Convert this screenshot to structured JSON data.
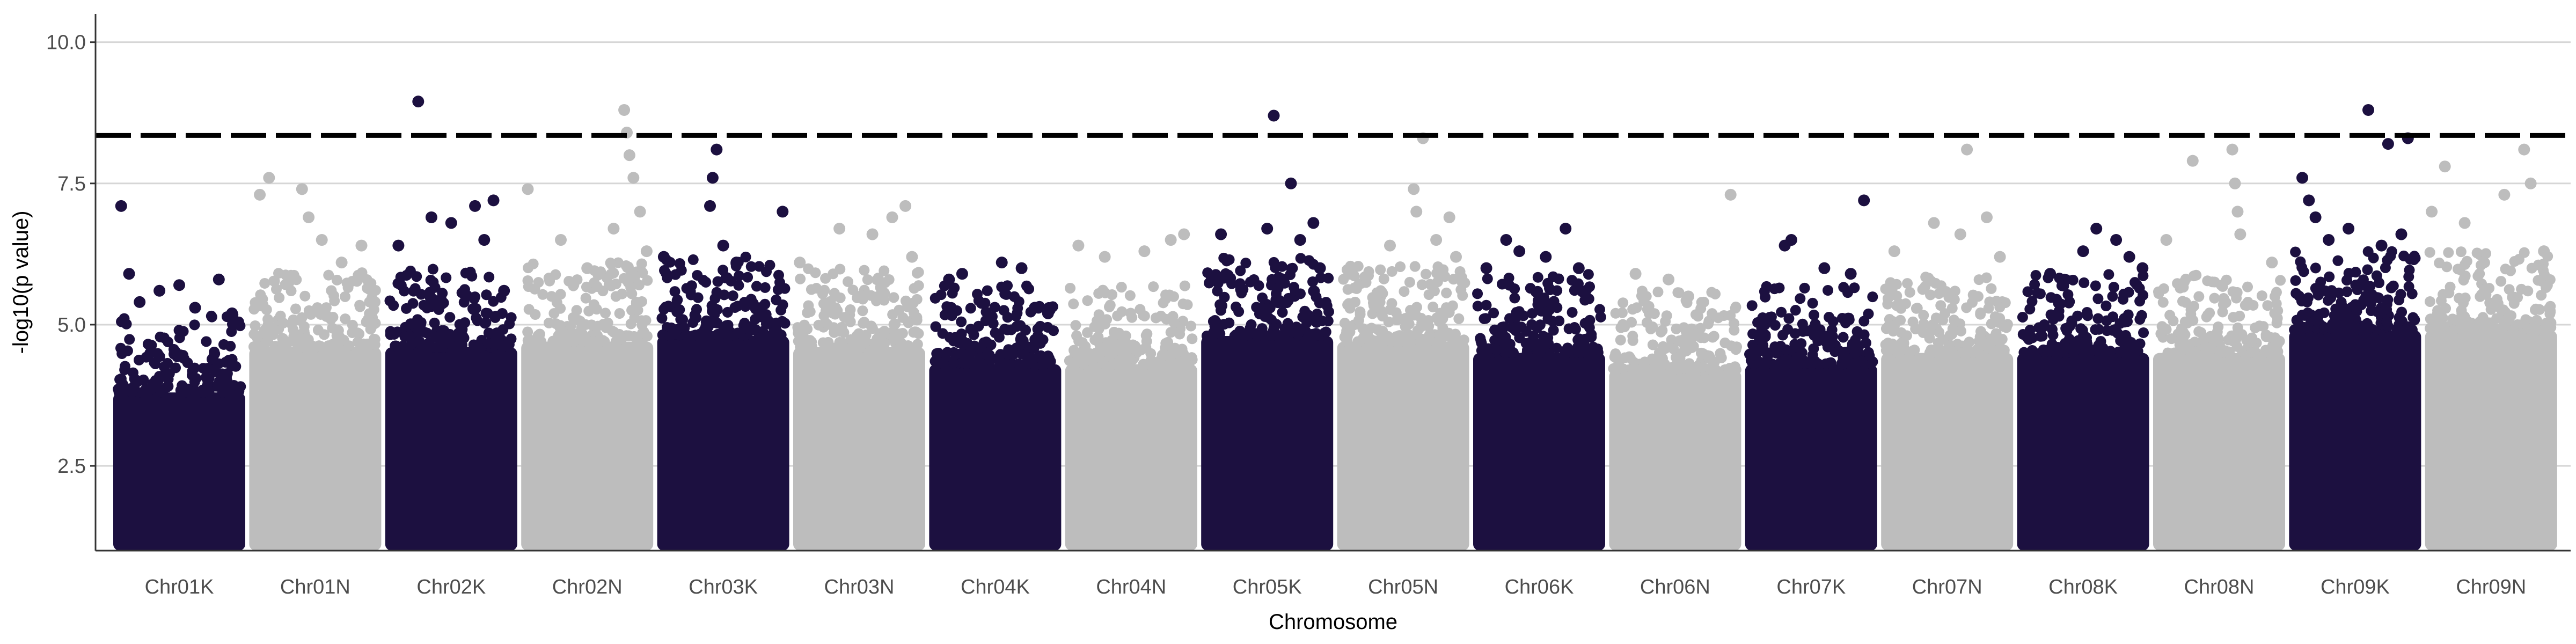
{
  "chart_data": {
    "type": "scatter",
    "subtype": "manhattan",
    "title": "",
    "xlabel": "Chromosome",
    "ylabel": "-log10(p value)",
    "ylim": [
      1,
      10.5
    ],
    "yticks": [
      2.5,
      5.0,
      7.5,
      10.0
    ],
    "ytick_labels": [
      "2.5",
      "5.0",
      "7.5",
      "10.0"
    ],
    "grid": "horizontal major lines only",
    "legend": "none",
    "threshold": {
      "value": 8.35,
      "style": "dashed",
      "color": "#000000"
    },
    "colors": {
      "K": "#1c1040",
      "N": "#bdbdbd"
    },
    "categories": [
      "Chr01K",
      "Chr01N",
      "Chr02K",
      "Chr02N",
      "Chr03K",
      "Chr03N",
      "Chr04K",
      "Chr04N",
      "Chr05K",
      "Chr05N",
      "Chr06K",
      "Chr06N",
      "Chr07K",
      "Chr07N",
      "Chr08K",
      "Chr08N",
      "Chr09K",
      "Chr09N"
    ],
    "series": [
      {
        "chromosome": "Chr01K",
        "dense_top": 3.8,
        "peak": 7.1,
        "points": [
          [
            0.06,
            7.1
          ],
          [
            0.12,
            5.9
          ],
          [
            0.2,
            5.4
          ],
          [
            0.35,
            5.6
          ],
          [
            0.5,
            5.7
          ],
          [
            0.62,
            5.3
          ],
          [
            0.8,
            5.8
          ],
          [
            0.9,
            5.2
          ]
        ]
      },
      {
        "chromosome": "Chr01N",
        "dense_top": 4.6,
        "peak": 7.6,
        "points": [
          [
            0.08,
            7.3
          ],
          [
            0.15,
            7.6
          ],
          [
            0.4,
            7.4
          ],
          [
            0.45,
            6.9
          ],
          [
            0.55,
            6.5
          ],
          [
            0.7,
            6.1
          ],
          [
            0.85,
            6.4
          ],
          [
            0.95,
            5.4
          ]
        ]
      },
      {
        "chromosome": "Chr02K",
        "dense_top": 4.6,
        "peak": 8.95,
        "points": [
          [
            0.1,
            6.4
          ],
          [
            0.25,
            8.95
          ],
          [
            0.35,
            6.9
          ],
          [
            0.5,
            6.8
          ],
          [
            0.68,
            7.1
          ],
          [
            0.75,
            6.5
          ],
          [
            0.82,
            7.2
          ],
          [
            0.9,
            5.6
          ]
        ]
      },
      {
        "chromosome": "Chr02N",
        "dense_top": 4.7,
        "peak": 8.8,
        "points": [
          [
            0.05,
            7.4
          ],
          [
            0.3,
            6.5
          ],
          [
            0.5,
            6.0
          ],
          [
            0.7,
            6.7
          ],
          [
            0.78,
            8.8
          ],
          [
            0.8,
            8.4
          ],
          [
            0.82,
            8.0
          ],
          [
            0.85,
            7.6
          ],
          [
            0.9,
            7.0
          ],
          [
            0.95,
            6.3
          ]
        ]
      },
      {
        "chromosome": "Chr03K",
        "dense_top": 4.8,
        "peak": 8.1,
        "points": [
          [
            0.05,
            6.2
          ],
          [
            0.4,
            7.1
          ],
          [
            0.42,
            7.6
          ],
          [
            0.45,
            8.1
          ],
          [
            0.5,
            6.4
          ],
          [
            0.6,
            6.1
          ],
          [
            0.95,
            7.0
          ]
        ]
      },
      {
        "chromosome": "Chr03N",
        "dense_top": 4.6,
        "peak": 7.1,
        "points": [
          [
            0.05,
            6.1
          ],
          [
            0.35,
            6.7
          ],
          [
            0.6,
            6.6
          ],
          [
            0.75,
            6.9
          ],
          [
            0.85,
            7.1
          ],
          [
            0.9,
            6.2
          ]
        ]
      },
      {
        "chromosome": "Chr04K",
        "dense_top": 4.3,
        "peak": 6.1,
        "points": [
          [
            0.15,
            5.8
          ],
          [
            0.25,
            5.9
          ],
          [
            0.55,
            6.1
          ],
          [
            0.7,
            6.0
          ],
          [
            0.8,
            5.3
          ],
          [
            0.9,
            5.2
          ]
        ]
      },
      {
        "chromosome": "Chr04N",
        "dense_top": 4.3,
        "peak": 6.6,
        "points": [
          [
            0.1,
            6.4
          ],
          [
            0.3,
            6.2
          ],
          [
            0.6,
            6.3
          ],
          [
            0.8,
            6.5
          ],
          [
            0.9,
            6.6
          ]
        ]
      },
      {
        "chromosome": "Chr05K",
        "dense_top": 4.8,
        "peak": 8.7,
        "points": [
          [
            0.15,
            6.6
          ],
          [
            0.5,
            6.7
          ],
          [
            0.55,
            8.7
          ],
          [
            0.68,
            7.5
          ],
          [
            0.75,
            6.5
          ],
          [
            0.85,
            6.8
          ],
          [
            0.9,
            6.0
          ]
        ]
      },
      {
        "chromosome": "Chr05N",
        "dense_top": 4.7,
        "peak": 8.3,
        "points": [
          [
            0.1,
            5.9
          ],
          [
            0.4,
            6.4
          ],
          [
            0.58,
            7.4
          ],
          [
            0.6,
            7.0
          ],
          [
            0.65,
            8.3
          ],
          [
            0.75,
            6.5
          ],
          [
            0.85,
            6.9
          ],
          [
            0.9,
            6.2
          ]
        ]
      },
      {
        "chromosome": "Chr06K",
        "dense_top": 4.5,
        "peak": 6.7,
        "points": [
          [
            0.1,
            6.0
          ],
          [
            0.25,
            6.5
          ],
          [
            0.35,
            6.3
          ],
          [
            0.55,
            6.2
          ],
          [
            0.7,
            6.7
          ],
          [
            0.8,
            6.0
          ]
        ]
      },
      {
        "chromosome": "Chr06N",
        "dense_top": 4.2,
        "peak": 7.3,
        "points": [
          [
            0.2,
            5.9
          ],
          [
            0.45,
            5.8
          ],
          [
            0.6,
            5.5
          ],
          [
            0.92,
            7.3
          ]
        ]
      },
      {
        "chromosome": "Chr07K",
        "dense_top": 4.3,
        "peak": 7.2,
        "points": [
          [
            0.3,
            6.4
          ],
          [
            0.35,
            6.5
          ],
          [
            0.6,
            6.0
          ],
          [
            0.8,
            5.9
          ],
          [
            0.9,
            7.2
          ]
        ]
      },
      {
        "chromosome": "Chr07N",
        "dense_top": 4.5,
        "peak": 8.1,
        "points": [
          [
            0.1,
            6.3
          ],
          [
            0.4,
            6.8
          ],
          [
            0.6,
            6.6
          ],
          [
            0.65,
            8.1
          ],
          [
            0.8,
            6.9
          ],
          [
            0.9,
            6.2
          ]
        ]
      },
      {
        "chromosome": "Chr08K",
        "dense_top": 4.5,
        "peak": 6.7,
        "points": [
          [
            0.25,
            5.9
          ],
          [
            0.5,
            6.3
          ],
          [
            0.6,
            6.7
          ],
          [
            0.75,
            6.5
          ],
          [
            0.85,
            6.2
          ],
          [
            0.95,
            6.0
          ]
        ]
      },
      {
        "chromosome": "Chr08N",
        "dense_top": 4.5,
        "peak": 8.1,
        "points": [
          [
            0.1,
            6.5
          ],
          [
            0.3,
            7.9
          ],
          [
            0.6,
            8.1
          ],
          [
            0.62,
            7.5
          ],
          [
            0.64,
            7.0
          ],
          [
            0.66,
            6.6
          ],
          [
            0.9,
            6.1
          ]
        ]
      },
      {
        "chromosome": "Chr09K",
        "dense_top": 4.9,
        "peak": 8.8,
        "points": [
          [
            0.1,
            7.6
          ],
          [
            0.15,
            7.2
          ],
          [
            0.2,
            6.9
          ],
          [
            0.3,
            6.5
          ],
          [
            0.45,
            6.7
          ],
          [
            0.6,
            8.8
          ],
          [
            0.7,
            6.4
          ],
          [
            0.75,
            8.2
          ],
          [
            0.85,
            6.6
          ],
          [
            0.9,
            8.3
          ]
        ]
      },
      {
        "chromosome": "Chr09N",
        "dense_top": 4.9,
        "peak": 8.1,
        "points": [
          [
            0.05,
            7.0
          ],
          [
            0.15,
            7.8
          ],
          [
            0.3,
            6.8
          ],
          [
            0.6,
            7.3
          ],
          [
            0.75,
            8.1
          ],
          [
            0.8,
            7.5
          ],
          [
            0.9,
            6.3
          ]
        ]
      }
    ]
  }
}
